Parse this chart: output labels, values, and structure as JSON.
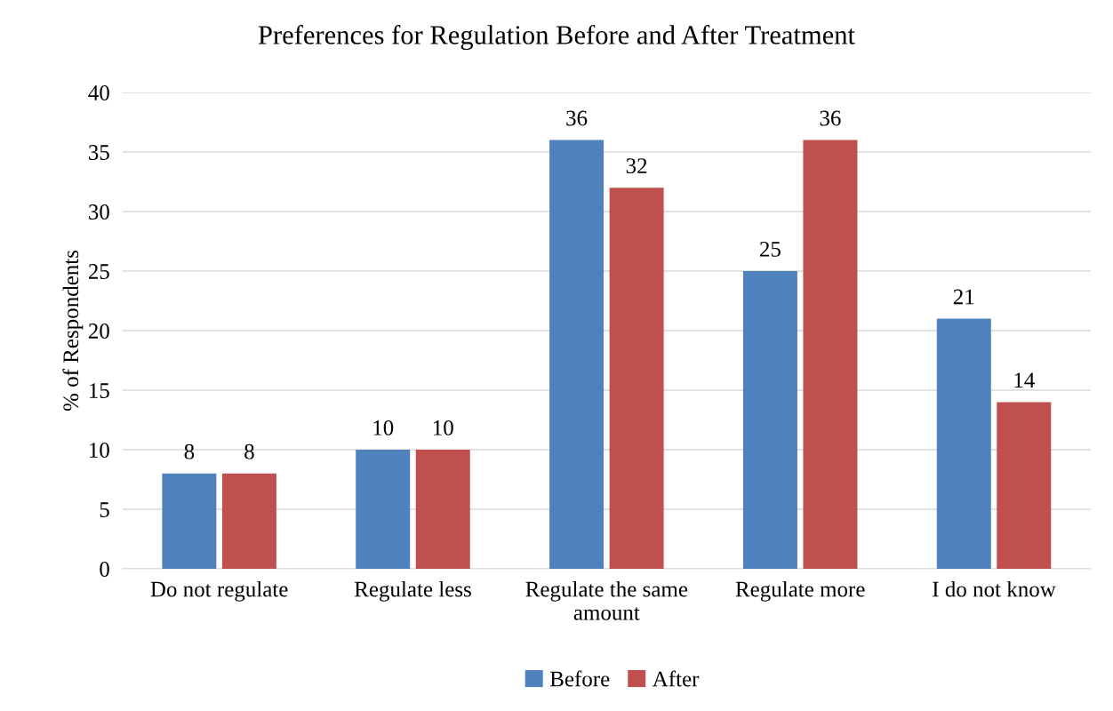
{
  "chart_data": {
    "type": "bar",
    "title": "Preferences for Regulation Before and After Treatment",
    "ylabel": "% of Respondents",
    "categories": [
      "Do not regulate",
      "Regulate less",
      "Regulate the same\namount",
      "Regulate more",
      "I do not know"
    ],
    "series": [
      {
        "name": "Before",
        "color": "#4f81bd",
        "values": [
          8,
          10,
          36,
          25,
          21
        ]
      },
      {
        "name": "After",
        "color": "#c0504d",
        "values": [
          8,
          10,
          32,
          36,
          14
        ]
      }
    ],
    "ylim": [
      0,
      40
    ],
    "yticks": [
      0,
      5,
      10,
      15,
      20,
      25,
      30,
      35,
      40
    ],
    "grid": "y",
    "legend": "bottom",
    "data_labels": true
  }
}
